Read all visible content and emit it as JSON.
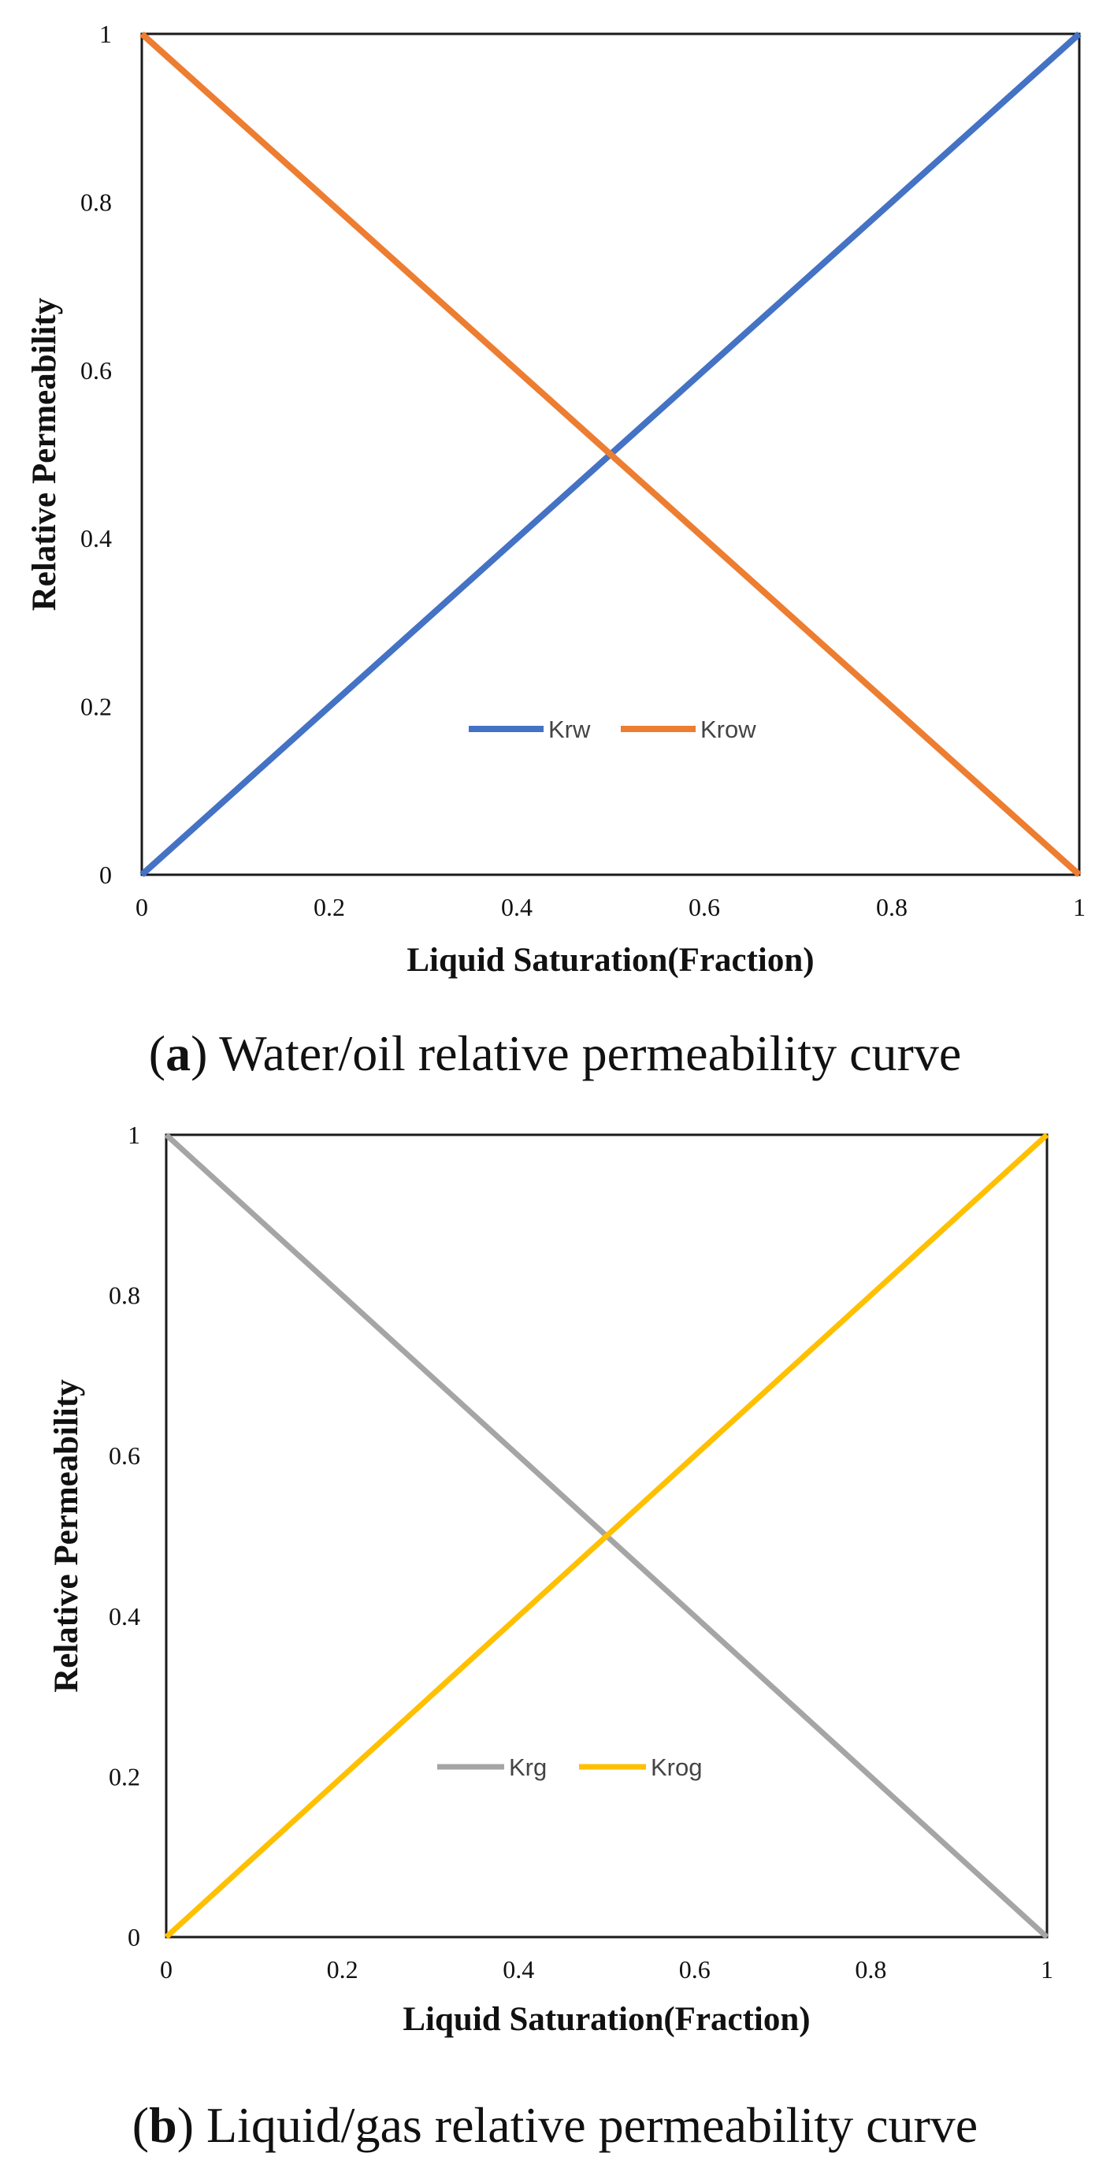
{
  "chart_data": [
    {
      "type": "line",
      "title": "",
      "xlabel": "Liquid Saturation(Fraction)",
      "ylabel": "Relative Permeability",
      "xlim": [
        0,
        1
      ],
      "ylim": [
        0,
        1
      ],
      "xticks": [
        "0",
        "0.2",
        "0.4",
        "0.6",
        "0.8",
        "1"
      ],
      "yticks": [
        "0",
        "0.2",
        "0.4",
        "0.6",
        "0.8",
        "1"
      ],
      "grid": false,
      "legend_position": "bottom-center",
      "series": [
        {
          "name": "Krw",
          "color": "#4472C4",
          "x": [
            0,
            1
          ],
          "y": [
            0,
            1
          ]
        },
        {
          "name": "Krow",
          "color": "#ED7D31",
          "x": [
            0,
            1
          ],
          "y": [
            1,
            0
          ]
        }
      ]
    },
    {
      "type": "line",
      "title": "",
      "xlabel": "Liquid Saturation(Fraction)",
      "ylabel": "Relative Permeability",
      "xlim": [
        0,
        1
      ],
      "ylim": [
        0,
        1
      ],
      "xticks": [
        "0",
        "0.2",
        "0.4",
        "0.6",
        "0.8",
        "1"
      ],
      "yticks": [
        "0",
        "0.2",
        "0.4",
        "0.6",
        "0.8",
        "1"
      ],
      "grid": false,
      "legend_position": "lower-center",
      "series": [
        {
          "name": "Krg",
          "color": "#A5A5A5",
          "x": [
            0,
            1
          ],
          "y": [
            1,
            0
          ]
        },
        {
          "name": "Krog",
          "color": "#FFC000",
          "x": [
            0,
            1
          ],
          "y": [
            0,
            1
          ]
        }
      ]
    }
  ],
  "captions": [
    {
      "letter": "a",
      "text": ") Water/oil relative permeability curve"
    },
    {
      "letter": "b",
      "text": ") Liquid/gas relative permeability curve"
    }
  ]
}
